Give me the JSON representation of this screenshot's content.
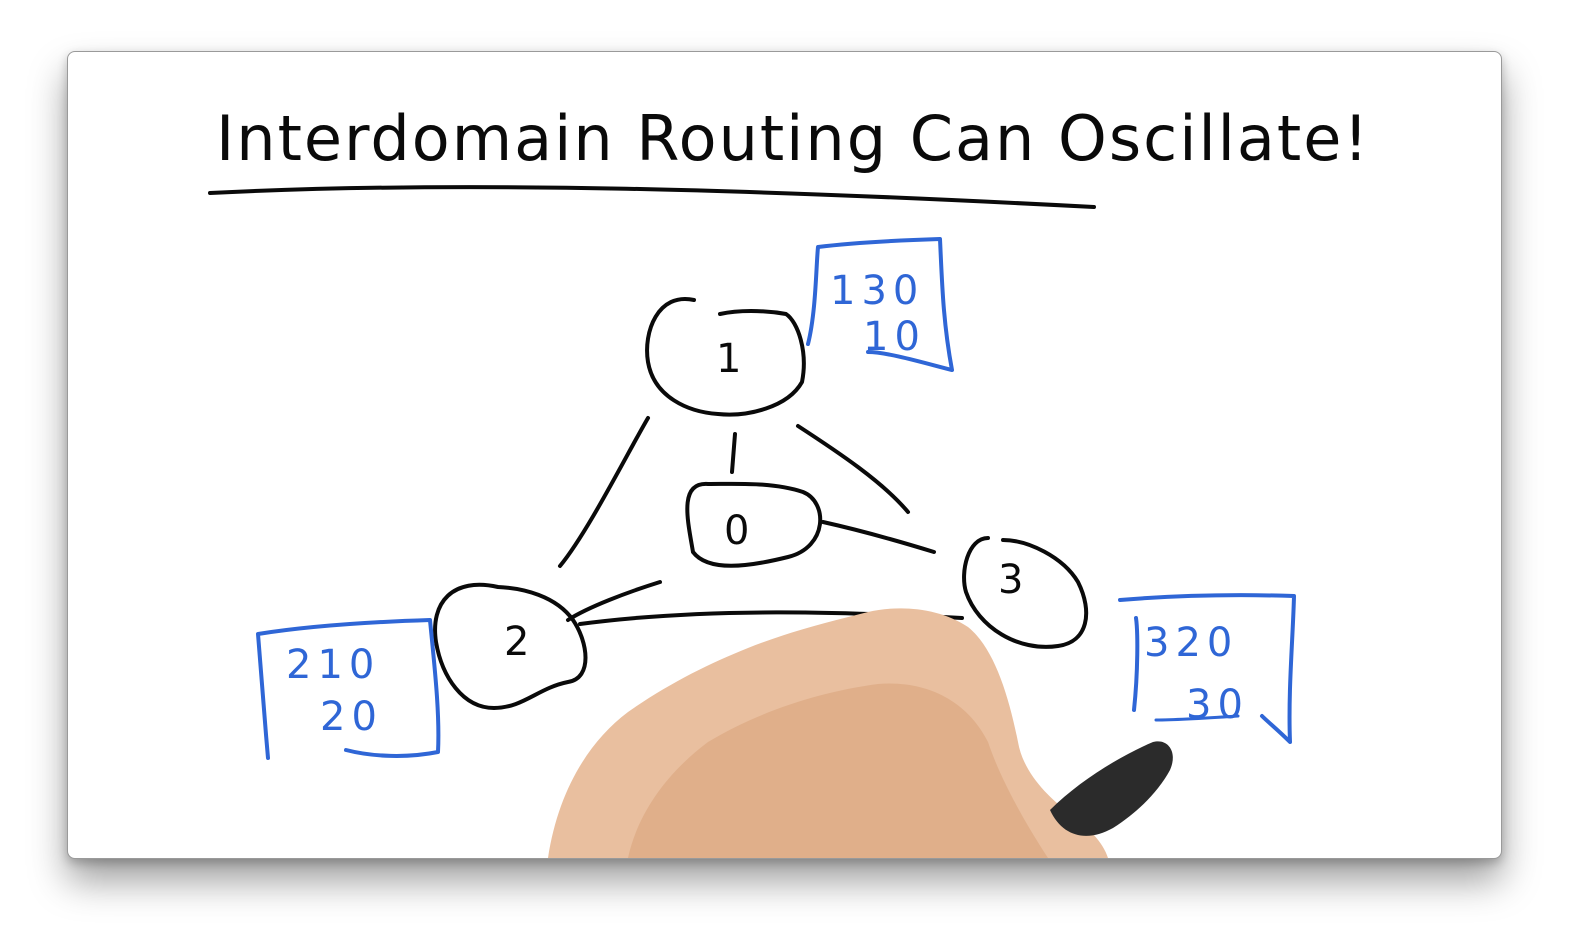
{
  "title": "Interdomain Routing Can Oscillate!",
  "colors": {
    "ink": "#0a0a0a",
    "preference": "#2f66d6",
    "skin": "#e9bf9f",
    "marker": "#2b2b2b"
  },
  "nodes": [
    {
      "id": "1",
      "label": "1"
    },
    {
      "id": "0",
      "label": "0"
    },
    {
      "id": "2",
      "label": "2"
    },
    {
      "id": "3",
      "label": "3"
    }
  ],
  "edges": [
    {
      "from": "1",
      "to": "0"
    },
    {
      "from": "1",
      "to": "2"
    },
    {
      "from": "1",
      "to": "3"
    },
    {
      "from": "0",
      "to": "2"
    },
    {
      "from": "0",
      "to": "3"
    },
    {
      "from": "2",
      "to": "3"
    }
  ],
  "preference_lists": [
    {
      "node": "1",
      "paths": [
        "130",
        "10"
      ]
    },
    {
      "node": "2",
      "paths": [
        "210",
        "20"
      ]
    },
    {
      "node": "3",
      "paths": [
        "320",
        "30"
      ]
    }
  ]
}
